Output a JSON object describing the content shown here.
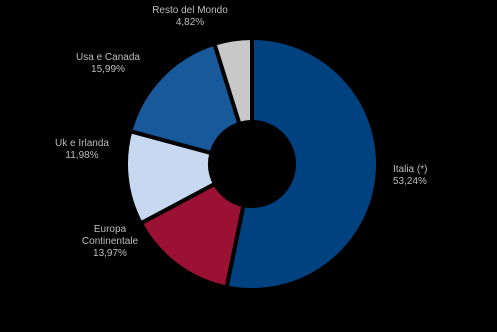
{
  "chart_data": {
    "type": "donut",
    "categories": [
      "Italia (*)",
      "Europa Continentale",
      "Uk e Irlanda",
      "Usa e Canada",
      "Resto del Mondo"
    ],
    "values": [
      53.24,
      13.97,
      11.98,
      15.99,
      4.82
    ],
    "value_labels": [
      "53,24%",
      "13,97%",
      "11,98%",
      "15,99%",
      "4,82%"
    ],
    "colors": [
      "#00427f",
      "#9a1133",
      "#c6d9f1",
      "#17599a",
      "#c8c8c8"
    ]
  }
}
